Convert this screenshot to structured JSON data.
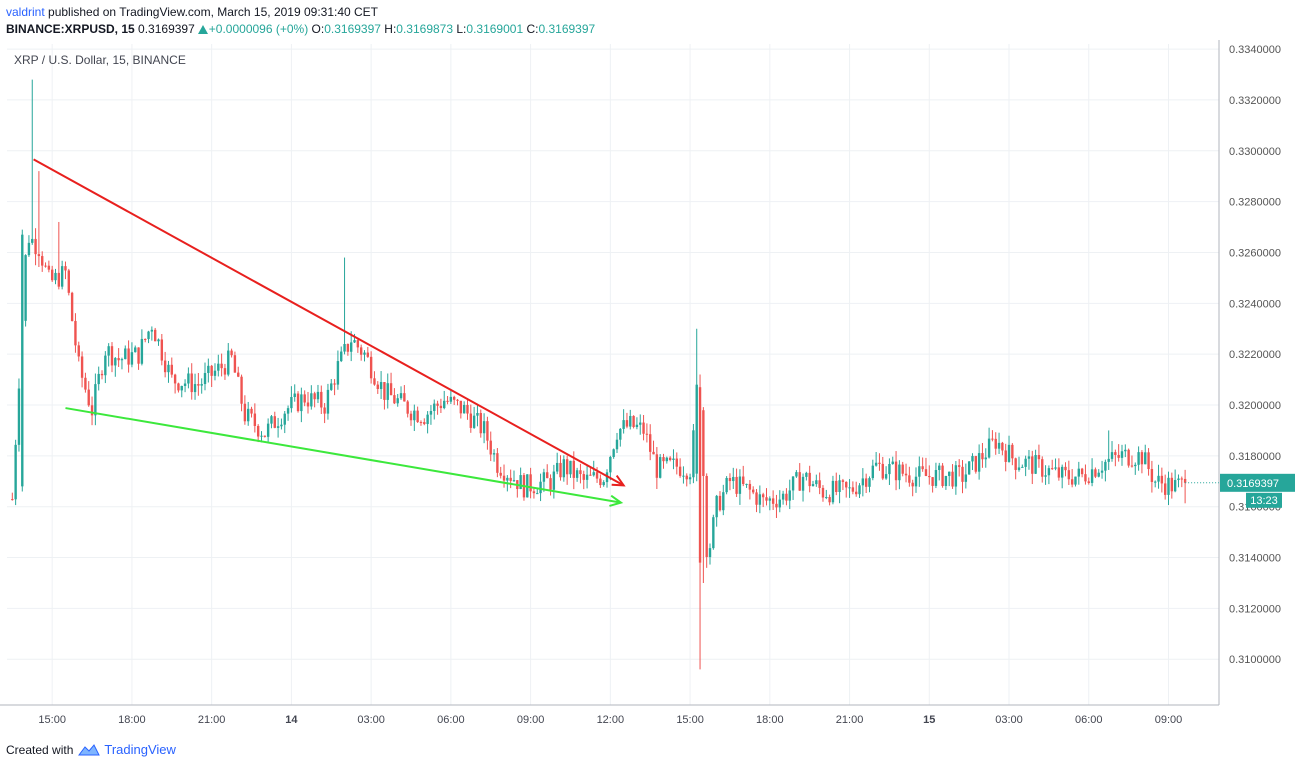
{
  "header": {
    "user": "valdrint",
    "published_text": "published on TradingView.com, March 15, 2019 09:31:40 CET",
    "symbol": "BINANCE:XRPUSD, 15",
    "price": "0.3169397",
    "change": "+0.0000096 (+0%)",
    "o_label": "O:",
    "o_value": "0.3169397",
    "h_label": "H:",
    "h_value": "0.3169873",
    "l_label": "L:",
    "l_value": "0.3169001",
    "c_label": "C:",
    "c_value": "0.3169397"
  },
  "footer": {
    "created_with": "Created with",
    "brand": "TradingView"
  },
  "colors": {
    "up": "#26a69a",
    "down": "#ef5350",
    "grid": "#eef1f4",
    "red_line": "#e8201e",
    "green_line": "#3ce83c",
    "axis_text": "#555555",
    "price_tag": "#26a69a"
  },
  "chart_data": {
    "type": "candlestick",
    "title": "XRP / U.S. Dollar, 15, BINANCE",
    "y_range": [
      0.3082,
      0.3342
    ],
    "y_ticks": [
      "0.3100000",
      "0.3120000",
      "0.3140000",
      "0.3160000",
      "0.3180000",
      "0.3200000",
      "0.3220000",
      "0.3240000",
      "0.3260000",
      "0.3280000",
      "0.3300000",
      "0.3320000",
      "0.3340000"
    ],
    "x_range": [
      0,
      90.8
    ],
    "x_ticks": [
      {
        "t": 3,
        "label": "15:00"
      },
      {
        "t": 9,
        "label": "18:00"
      },
      {
        "t": 15,
        "label": "21:00"
      },
      {
        "t": 21,
        "label": "14"
      },
      {
        "t": 27,
        "label": "03:00"
      },
      {
        "t": 33,
        "label": "06:00"
      },
      {
        "t": 39,
        "label": "09:00"
      },
      {
        "t": 45,
        "label": "12:00"
      },
      {
        "t": 51,
        "label": "15:00"
      },
      {
        "t": 57,
        "label": "18:00"
      },
      {
        "t": 63,
        "label": "21:00"
      },
      {
        "t": 69,
        "label": "15"
      },
      {
        "t": 75,
        "label": "03:00"
      },
      {
        "t": 81,
        "label": "06:00"
      },
      {
        "t": 87,
        "label": "09:00"
      }
    ],
    "last_price": {
      "value": 0.3169397,
      "label": "0.3169397",
      "countdown": "13:23"
    },
    "trend_lines": [
      {
        "color": "red",
        "x1": 1.6,
        "y1": 0.32966,
        "x2": 46.0,
        "y2": 0.31684
      },
      {
        "color": "green",
        "x1": 4.0,
        "y1": 0.31988,
        "x2": 45.8,
        "y2": 0.31616
      }
    ],
    "anchors": [
      [
        0,
        0.3163
      ],
      [
        1.1,
        0.3267
      ],
      [
        2.0,
        0.3262
      ],
      [
        2.8,
        0.3248
      ],
      [
        4.0,
        0.3252
      ],
      [
        5.0,
        0.3215
      ],
      [
        6.0,
        0.3198
      ],
      [
        7.0,
        0.3222
      ],
      [
        8.0,
        0.3218
      ],
      [
        9.5,
        0.322
      ],
      [
        10.5,
        0.3232
      ],
      [
        12.0,
        0.321
      ],
      [
        14.0,
        0.3208
      ],
      [
        16.5,
        0.3218
      ],
      [
        17.5,
        0.3196
      ],
      [
        19.0,
        0.3189
      ],
      [
        20.5,
        0.3198
      ],
      [
        22.0,
        0.3203
      ],
      [
        23.5,
        0.32
      ],
      [
        24.5,
        0.3215
      ],
      [
        25.5,
        0.3226
      ],
      [
        26.5,
        0.322
      ],
      [
        28.0,
        0.3205
      ],
      [
        30.0,
        0.3198
      ],
      [
        31.0,
        0.3196
      ],
      [
        32.5,
        0.3202
      ],
      [
        34.0,
        0.3198
      ],
      [
        35.5,
        0.319
      ],
      [
        36.5,
        0.3177
      ],
      [
        38.5,
        0.3168
      ],
      [
        40.5,
        0.317
      ],
      [
        41.5,
        0.3176
      ],
      [
        43.0,
        0.317
      ],
      [
        44.5,
        0.3172
      ],
      [
        45.5,
        0.319
      ],
      [
        46.5,
        0.3192
      ],
      [
        47.5,
        0.319
      ],
      [
        48.5,
        0.3175
      ],
      [
        50.0,
        0.3176
      ],
      [
        51.0,
        0.3175
      ],
      [
        51.7,
        0.3207
      ],
      [
        52.3,
        0.3139
      ],
      [
        53.0,
        0.316
      ],
      [
        54.0,
        0.317
      ],
      [
        55.5,
        0.3166
      ],
      [
        56.5,
        0.3162
      ],
      [
        58.0,
        0.3164
      ],
      [
        59.5,
        0.3172
      ],
      [
        61.0,
        0.3166
      ],
      [
        63.0,
        0.3166
      ],
      [
        65.0,
        0.3176
      ],
      [
        66.5,
        0.3174
      ],
      [
        68.0,
        0.3172
      ],
      [
        70.0,
        0.3172
      ],
      [
        71.5,
        0.3172
      ],
      [
        73.0,
        0.318
      ],
      [
        74.0,
        0.3186
      ],
      [
        75.5,
        0.3178
      ],
      [
        76.5,
        0.3177
      ],
      [
        77.5,
        0.3175
      ],
      [
        79.0,
        0.3172
      ],
      [
        80.5,
        0.3172
      ],
      [
        82.0,
        0.3177
      ],
      [
        83.5,
        0.318
      ],
      [
        85.0,
        0.318
      ],
      [
        86.0,
        0.317
      ],
      [
        87.5,
        0.3168
      ],
      [
        88.2,
        0.3169
      ]
    ],
    "spikes": [
      {
        "t": 1.4,
        "high": 0.3328
      },
      {
        "t": 2.0,
        "high": 0.3292
      },
      {
        "t": 3.5,
        "high": 0.3272
      },
      {
        "t": 25.0,
        "high": 0.3258
      },
      {
        "t": 51.4,
        "high": 0.323
      },
      {
        "t": 51.7,
        "low": 0.3096
      },
      {
        "t": 52.1,
        "low": 0.313
      },
      {
        "t": 82.4,
        "high": 0.319
      }
    ]
  }
}
